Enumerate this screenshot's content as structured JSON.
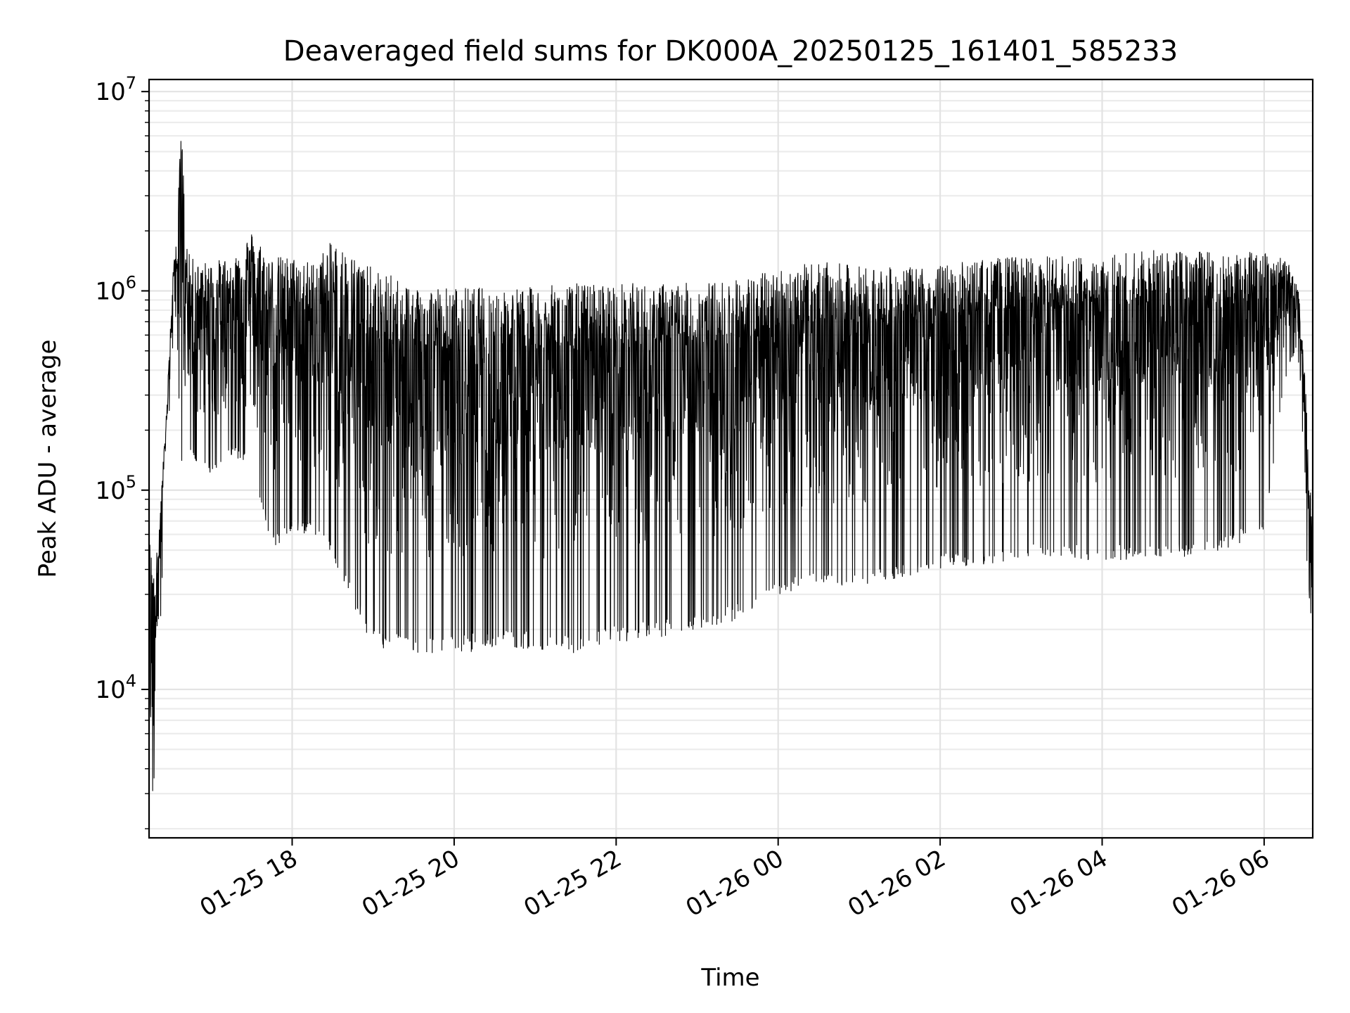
{
  "chart_data": {
    "type": "line",
    "title": "Deaveraged field sums for DK000A_20250125_161401_585233",
    "xlabel": "Time",
    "ylabel": "Peak ADU - average",
    "yscale": "log",
    "grid": "on (major and minor)",
    "legend": "none",
    "line_color": "#000000",
    "xlim": [
      "2025-01-25 16:14",
      "2025-01-26 06:36"
    ],
    "ylim": [
      1800,
      11500000
    ],
    "x_ticks": [
      "01-25 18",
      "01-25 20",
      "01-25 22",
      "01-26 00",
      "01-26 02",
      "01-26 04",
      "01-26 06"
    ],
    "y_ticks": [
      {
        "base": "10",
        "exp": "4",
        "value": 10000
      },
      {
        "base": "10",
        "exp": "5",
        "value": 100000
      },
      {
        "base": "10",
        "exp": "6",
        "value": 1000000
      },
      {
        "base": "10",
        "exp": "7",
        "value": 10000000
      }
    ],
    "series": [
      {
        "x": [
          "2025-01-25 16:14",
          "2025-01-25 16:17",
          "2025-01-25 16:20",
          "2025-01-25 16:26",
          "2025-01-25 16:32",
          "2025-01-25 16:35",
          "2025-01-25 16:38",
          "2025-01-25 16:41",
          "2025-01-25 16:44",
          "2025-01-25 16:50",
          "2025-01-25 17:00",
          "2025-01-25 17:15",
          "2025-01-25 17:30",
          "2025-01-25 17:45",
          "2025-01-25 18:00",
          "2025-01-25 18:15",
          "2025-01-25 18:30",
          "2025-01-25 19:00",
          "2025-01-25 19:30",
          "2025-01-25 20:00",
          "2025-01-25 20:30",
          "2025-01-25 21:00",
          "2025-01-25 21:30",
          "2025-01-25 22:00",
          "2025-01-25 22:30",
          "2025-01-25 23:00",
          "2025-01-25 23:30",
          "2025-01-26 00:00",
          "2025-01-26 00:30",
          "2025-01-26 01:00",
          "2025-01-26 01:30",
          "2025-01-26 02:00",
          "2025-01-26 02:30",
          "2025-01-26 03:00",
          "2025-01-26 03:30",
          "2025-01-26 04:00",
          "2025-01-26 04:30",
          "2025-01-26 05:00",
          "2025-01-26 05:30",
          "2025-01-26 06:00",
          "2025-01-26 06:15",
          "2025-01-26 06:25",
          "2025-01-26 06:30",
          "2025-01-26 06:36"
        ],
        "upper": [
          60000,
          45000,
          50000,
          200000,
          1300000,
          2300000,
          7700000,
          2000000,
          1500000,
          1400000,
          1400000,
          1500000,
          2000000,
          1500000,
          1500000,
          1400000,
          1800000,
          1300000,
          1100000,
          1050000,
          1050000,
          1050000,
          1100000,
          1100000,
          1100000,
          1100000,
          1150000,
          1300000,
          1400000,
          1350000,
          1300000,
          1350000,
          1450000,
          1500000,
          1500000,
          1550000,
          1600000,
          1600000,
          1600000,
          1550000,
          1500000,
          1100000,
          400000,
          60000
        ],
        "lower": [
          3000,
          2700,
          7000,
          100000,
          600000,
          500000,
          120000,
          130000,
          150000,
          130000,
          120000,
          150000,
          130000,
          50000,
          60000,
          60000,
          45000,
          16000,
          15000,
          15000,
          16000,
          16000,
          15000,
          17000,
          18000,
          20000,
          22000,
          30000,
          32000,
          33000,
          36000,
          40000,
          42000,
          45000,
          45000,
          44000,
          45000,
          45000,
          50000,
          60000,
          350000,
          550000,
          60000,
          17000
        ]
      }
    ]
  }
}
